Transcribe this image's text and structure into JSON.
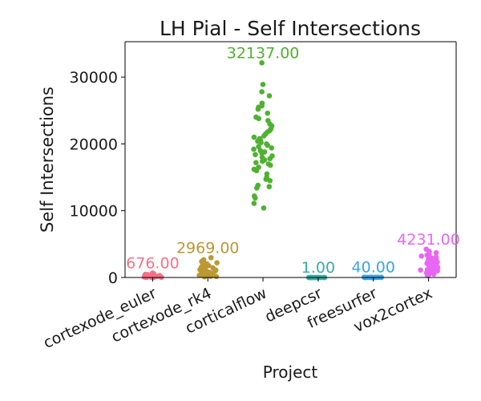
{
  "chart_data": {
    "type": "scatter",
    "title": "LH Pial - Self Intersections",
    "xlabel": "Project",
    "ylabel": "Self Intersections",
    "categories": [
      "cortexode_euler",
      "cortexode_rk4",
      "corticalflow",
      "deepcsr",
      "freesurfer",
      "vox2cortex"
    ],
    "colors": [
      "#f77189",
      "#bb9832",
      "#50b131",
      "#36ada4",
      "#3ba3ec",
      "#e866f4"
    ],
    "ylim": [
      0,
      35300
    ],
    "yticks": [
      0,
      10000,
      20000,
      30000
    ],
    "ytick_labels": [
      "0",
      "10000",
      "20000",
      "30000"
    ],
    "grid": false,
    "max_labels": [
      "676.00",
      "2969.00",
      "32137.00",
      "1.00",
      "40.00",
      "4231.00"
    ],
    "series": [
      {
        "name": "cortexode_euler",
        "values": [
          676,
          560,
          480,
          430,
          390,
          350,
          320,
          290,
          260,
          240,
          220,
          200,
          180,
          160,
          150,
          140,
          120,
          110,
          100,
          90,
          80,
          70,
          60,
          50,
          40,
          35,
          30,
          25,
          20,
          15
        ]
      },
      {
        "name": "cortexode_rk4",
        "values": [
          2969,
          2650,
          2400,
          2200,
          2050,
          1900,
          1780,
          1650,
          1550,
          1450,
          1350,
          1250,
          1180,
          1100,
          1020,
          950,
          880,
          820,
          760,
          700,
          640,
          580,
          520,
          470,
          420,
          370,
          320,
          270,
          220,
          180,
          140,
          100
        ]
      },
      {
        "name": "corticalflow",
        "values": [
          32137,
          28900,
          27800,
          27200,
          26100,
          25700,
          25500,
          25200,
          24600,
          24000,
          23800,
          23500,
          23000,
          22700,
          22300,
          22000,
          21800,
          21500,
          21200,
          21000,
          20800,
          20600,
          20400,
          20200,
          20000,
          19800,
          19600,
          19400,
          19200,
          19000,
          18800,
          18600,
          18400,
          18200,
          18000,
          17800,
          17600,
          17400,
          17200,
          17000,
          16800,
          16500,
          16200,
          16000,
          15500,
          15000,
          14700,
          14500,
          13800,
          13600,
          13400,
          12200,
          11900,
          11100,
          10400
        ]
      },
      {
        "name": "deepcsr",
        "values": [
          1,
          1,
          1,
          1,
          1,
          0,
          0,
          0,
          0,
          0,
          0,
          0,
          0,
          0,
          0,
          0,
          0,
          0,
          0,
          0
        ]
      },
      {
        "name": "freesurfer",
        "values": [
          40,
          35,
          30,
          28,
          25,
          22,
          20,
          18,
          16,
          14,
          12,
          10,
          9,
          8,
          7,
          6,
          5,
          4,
          3,
          2
        ]
      },
      {
        "name": "vox2cortex",
        "values": [
          4231,
          3900,
          3700,
          3500,
          3350,
          3200,
          3050,
          2900,
          2800,
          2650,
          2500,
          2400,
          2300,
          2200,
          2100,
          2000,
          1900,
          1800,
          1700,
          1600,
          1500,
          1400,
          1300,
          1200,
          1100,
          1000,
          900,
          800,
          700,
          600,
          500,
          400,
          300
        ]
      }
    ]
  }
}
